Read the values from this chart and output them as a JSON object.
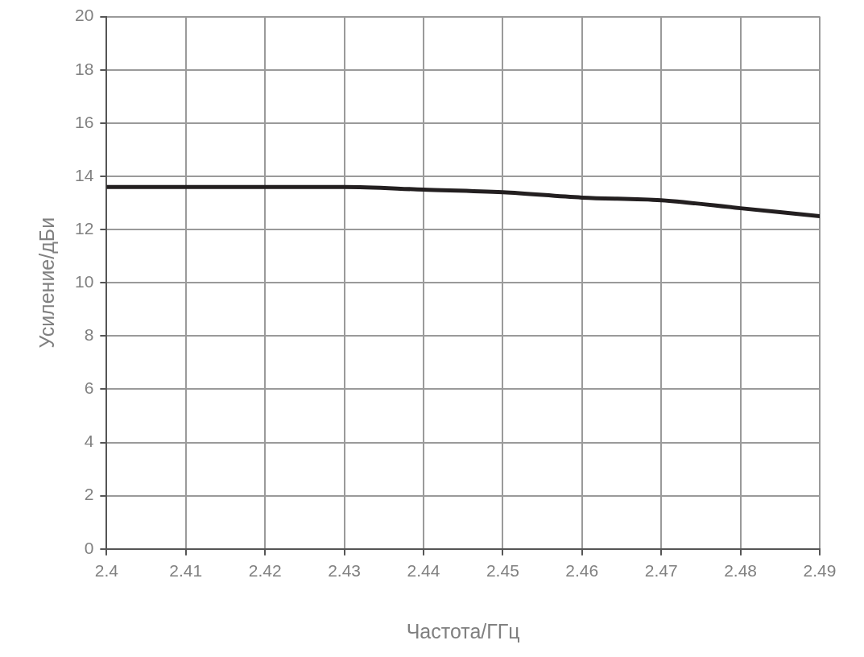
{
  "chart_data": {
    "type": "line",
    "xlabel": "Частота/ГГц",
    "ylabel": "Усиление/дБи",
    "x": [
      2.4,
      2.41,
      2.42,
      2.43,
      2.44,
      2.45,
      2.46,
      2.47,
      2.48,
      2.49
    ],
    "series": [
      {
        "color": "#231f20",
        "values": [
          13.6,
          13.6,
          13.6,
          13.6,
          13.5,
          13.4,
          13.2,
          13.1,
          12.8,
          12.5
        ]
      }
    ],
    "xlim": [
      2.4,
      2.49
    ],
    "xticks": [
      2.4,
      2.41,
      2.42,
      2.43,
      2.44,
      2.45,
      2.46,
      2.47,
      2.48,
      2.49
    ],
    "ylim": [
      0,
      20
    ],
    "yticks": [
      0,
      2,
      4,
      6,
      8,
      10,
      12,
      14,
      16,
      18,
      20
    ],
    "grid": true,
    "legend": false,
    "marker": "none",
    "line_style": "solid"
  }
}
